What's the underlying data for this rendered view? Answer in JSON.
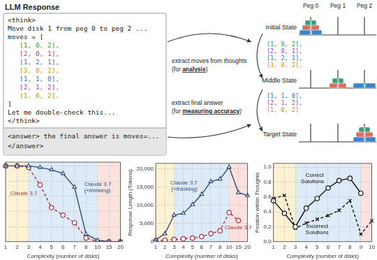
{
  "response": {
    "title": "LLM Response",
    "think_lines": [
      {
        "text": "<think>"
      },
      {
        "text": "Move disk 1 from peg 0 to peg 2 ..."
      },
      {
        "text": "moves = ["
      },
      {
        "text": "[1, 0, 2],",
        "color": "#2a9d3a"
      },
      {
        "text": "[2, 0, 1],",
        "color": "#a040b0"
      },
      {
        "text": "[1, 2, 1],",
        "color": "#2b6fd6"
      },
      {
        "text": "[3, 0, 2],",
        "color": "#d4900a"
      },
      {
        "text": "[1, 1, 0],",
        "color": "#2b6fd6"
      },
      {
        "text": "[2, 1, 2],",
        "color": "#a040b0"
      },
      {
        "text": "[1, 0, 2],",
        "color": "#b8960a"
      },
      {
        "text": "]"
      },
      {
        "text": "Let me double-check this..."
      },
      {
        "text": "</think>"
      }
    ],
    "answer_lines": [
      "<answer> the final answer is moves=...",
      "</answer>"
    ]
  },
  "links": [
    {
      "text": "extract moves from thoughts",
      "note_prefix": "(for ",
      "note_emphasis": "analysis",
      "note_suffix": ")"
    },
    {
      "text": "extract final answer",
      "note_prefix": "(for ",
      "note_emphasis": "measuring accuracy",
      "note_suffix": ")"
    }
  ],
  "hanoi": {
    "pegs": [
      "Peg 0",
      "Peg 1",
      "Peg 2"
    ],
    "disks": [
      {
        "id": 1,
        "color": "#3d9b7b"
      },
      {
        "id": 2,
        "color": "#d8705e"
      },
      {
        "id": 3,
        "color": "#3a86cc"
      }
    ],
    "states": [
      {
        "label": "Initial State",
        "pegs": [
          [
            3,
            2,
            1
          ],
          [],
          []
        ]
      },
      {
        "label": "Middle State",
        "pegs": [
          [],
          [
            2,
            1
          ],
          [
            3
          ]
        ]
      },
      {
        "label": "Target State",
        "pegs": [
          [],
          [],
          [
            3,
            2,
            1
          ]
        ]
      }
    ],
    "move_lists": [
      [
        {
          "text": "[1, 0, 2],",
          "color": "#2a9d3a"
        },
        {
          "text": "[2, 0, 1],",
          "color": "#a040b0"
        },
        {
          "text": "[1, 2, 1],",
          "color": "#2b6fd6"
        },
        {
          "text": "[3, 0, 2],",
          "color": "#d4900a"
        }
      ],
      [
        {
          "text": "[1, 1, 0],",
          "color": "#2b6fd6"
        },
        {
          "text": "[2, 1, 2],",
          "color": "#a040b0"
        },
        {
          "text": "[1, 0, 2]",
          "color": "#b8960a"
        }
      ]
    ]
  },
  "chart_data": [
    {
      "type": "line",
      "x_label": "Complexity (number of disks)",
      "categories": [
        "1",
        "2",
        "3",
        "4",
        "5",
        "6",
        "7",
        "8",
        "10",
        "15",
        "20"
      ],
      "ylim": [
        0,
        105
      ],
      "yticks": [
        0,
        20,
        40,
        60,
        80,
        100
      ],
      "grid": true,
      "tick_labels": "x",
      "regions": [
        {
          "from": "1",
          "to": "3",
          "color": "#fdf3d2"
        },
        {
          "from": "3",
          "to": "10",
          "color": "#ddebf8"
        },
        {
          "from": "10",
          "to": "20",
          "color": "#fbe2de"
        }
      ],
      "series": [
        {
          "name": "Claude 3.7 (+thinking)",
          "color": "#2f4b7c",
          "marker": "triangle",
          "line_style": "solid",
          "values": [
            100,
            100,
            100,
            98,
            95,
            90,
            72,
            10,
            2,
            0,
            0
          ]
        },
        {
          "name": "Claude 3.7",
          "color": "#a8313f",
          "marker": "circle",
          "line_style": "dashed",
          "values": [
            100,
            100,
            98,
            75,
            45,
            35,
            25,
            5,
            0,
            0,
            0
          ]
        }
      ]
    },
    {
      "type": "line",
      "x_label": "Complexity (number of disks)",
      "y_label": "Response Length (Tokens)",
      "categories": [
        "1",
        "2",
        "3",
        "4",
        "5",
        "6",
        "7",
        "8",
        "10",
        "15",
        "20"
      ],
      "ylim": [
        0,
        21500
      ],
      "yticks": [
        0,
        {
          "value": 5000,
          "label": "5,000"
        },
        {
          "value": 10000,
          "label": "10,000"
        },
        {
          "value": 15000,
          "label": "15,000"
        },
        {
          "value": 20000,
          "label": "20,000"
        }
      ],
      "grid": true,
      "regions": [
        {
          "from": "1",
          "to": "3",
          "color": "#fdf3d2"
        },
        {
          "from": "3",
          "to": "10",
          "color": "#ddebf8"
        },
        {
          "from": "10",
          "to": "20",
          "color": "#fbe2de"
        }
      ],
      "series": [
        {
          "name": "Claude 3.7 (+thinking)",
          "color": "#2f4b7c",
          "marker": "triangle",
          "line_style": "solid",
          "values": [
            500,
            2200,
            7300,
            7800,
            10200,
            13000,
            16500,
            17200,
            20500,
            13500,
            12700
          ]
        },
        {
          "name": "Claude 3.7",
          "color": "#a8313f",
          "marker": "circle",
          "line_style": "dashed",
          "values": [
            300,
            400,
            600,
            800,
            1000,
            1400,
            2200,
            3000,
            8000,
            5800,
            null
          ]
        }
      ]
    },
    {
      "type": "line",
      "x_label": "Complexity (number of disks)",
      "y_label": "Position within Thoughts",
      "categories": [
        "1",
        "2",
        "3",
        "4",
        "5",
        "6",
        "7",
        "8",
        "9",
        "10"
      ],
      "ylim": [
        0,
        1.05
      ],
      "yticks": [
        {
          "value": 0,
          "label": "0.0"
        },
        {
          "value": 0.2,
          "label": "0.2"
        },
        {
          "value": 0.4,
          "label": "0.4"
        },
        {
          "value": 0.6,
          "label": "0.6"
        },
        {
          "value": 0.8,
          "label": "0.8"
        },
        {
          "value": 1,
          "label": "1.0"
        }
      ],
      "grid": true,
      "regions": [
        {
          "from": "1",
          "to": "3",
          "color": "#fdf3d2"
        },
        {
          "from": "3",
          "to": "9",
          "color": "#ddebf8"
        },
        {
          "from": "9",
          "to": "10",
          "color": "#fbe2de"
        }
      ],
      "series": [
        {
          "name": "Correct Solutions",
          "color": "#111111",
          "marker": "circle",
          "line_style": "solid",
          "values": [
            0.55,
            0.38,
            0.2,
            0.45,
            0.58,
            0.72,
            0.82,
            0.85,
            0.65,
            null
          ]
        },
        {
          "name": "Incorrect Solutions",
          "color": "#111111",
          "marker": "x",
          "line_style": "dashed",
          "values": [
            0.58,
            0.62,
            0.18,
            0.25,
            0.3,
            0.35,
            0.42,
            0.55,
            0.1,
            0.28
          ]
        }
      ]
    }
  ]
}
